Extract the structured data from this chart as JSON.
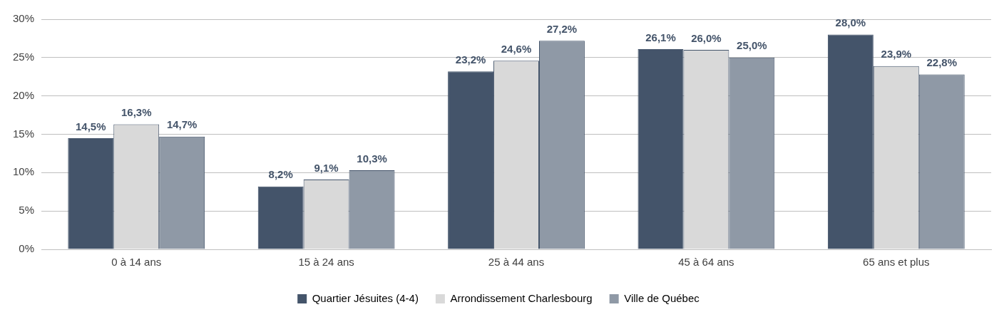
{
  "chart_data": {
    "type": "bar",
    "categories": [
      "0 à 14 ans",
      "15 à 24 ans",
      "25 à 44 ans",
      "45 à 64 ans",
      "65 ans et plus"
    ],
    "series": [
      {
        "name": "Quartier Jésuites (4-4)",
        "color": "#44546a",
        "values": [
          14.5,
          8.2,
          23.2,
          26.1,
          28.0
        ],
        "value_labels": [
          "14,5%",
          "8,2%",
          "23,2%",
          "26,1%",
          "28,0%"
        ]
      },
      {
        "name": "Arrondissement Charlesbourg",
        "color": "#d9d9d9",
        "values": [
          16.3,
          9.1,
          24.6,
          26.0,
          23.9
        ],
        "value_labels": [
          "16,3%",
          "9,1%",
          "24,6%",
          "26,0%",
          "23,9%"
        ]
      },
      {
        "name": "Ville de Québec",
        "color": "#8f99a6",
        "values": [
          14.7,
          10.3,
          27.2,
          25.0,
          22.8
        ],
        "value_labels": [
          "14,7%",
          "10,3%",
          "27,2%",
          "25,0%",
          "22,8%"
        ]
      }
    ],
    "ylim": [
      0,
      30
    ],
    "yticks": [
      {
        "value": 0,
        "label": "0%"
      },
      {
        "value": 5,
        "label": "5%"
      },
      {
        "value": 10,
        "label": "10%"
      },
      {
        "value": 15,
        "label": "15%"
      },
      {
        "value": 20,
        "label": "20%"
      },
      {
        "value": 25,
        "label": "25%"
      },
      {
        "value": 30,
        "label": "30%"
      }
    ],
    "grid": "y",
    "legend": "bottom"
  }
}
